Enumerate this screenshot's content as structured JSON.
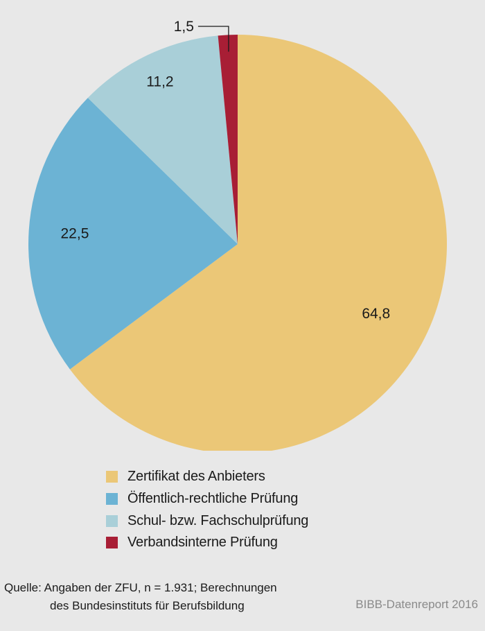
{
  "chart_data": {
    "type": "pie",
    "slices": [
      {
        "label": "Zertifikat des Anbieters",
        "value": 64.8,
        "display": "64,8",
        "color": "#ebc777"
      },
      {
        "label": "Öffentlich-rechtliche Prüfung",
        "value": 22.5,
        "display": "22,5",
        "color": "#6cb3d4"
      },
      {
        "label": "Schul- bzw. Fachschulprüfung",
        "value": 11.2,
        "display": "11,2",
        "color": "#a9cfd8"
      },
      {
        "label": "Verbandsinterne Prüfung",
        "value": 1.5,
        "display": "1,5",
        "color": "#a81e35"
      }
    ],
    "legend_position": "bottom"
  },
  "source": {
    "line1": "Quelle: Angaben der ZFU, n = 1.931; Berechnungen",
    "line2": "des Bundesinstituts für Berufsbildung"
  },
  "credit": "BIBB-Datenreport 2016"
}
